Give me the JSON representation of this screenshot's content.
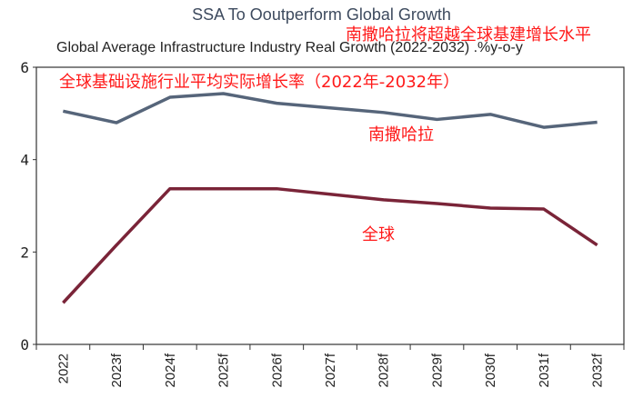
{
  "chart_data": {
    "type": "line",
    "title": "SSA To Ooutperform Global Growth",
    "subtitle": "Global Average Infrastructure Industry Real Growth (2022-2032) .%y-o-y",
    "categories": [
      "2022",
      "2023f",
      "2024f",
      "2025f",
      "2026f",
      "2027f",
      "2028f",
      "2029f",
      "2030f",
      "2031f",
      "2032f"
    ],
    "ylim": [
      0,
      6
    ],
    "yticks": [
      "0",
      "2",
      "4",
      "6"
    ],
    "series": [
      {
        "name": "SSA",
        "color": "#56657a",
        "values": [
          5.05,
          4.8,
          5.35,
          5.43,
          5.22,
          5.12,
          5.02,
          4.87,
          4.98,
          4.7,
          4.81
        ]
      },
      {
        "name": "Global",
        "color": "#7a2438",
        "values": [
          0.9,
          2.15,
          3.37,
          3.37,
          3.37,
          3.25,
          3.13,
          3.05,
          2.95,
          2.93,
          2.15
        ]
      }
    ],
    "annotations": {
      "title_cn": "南撒哈拉将超越全球基建增长水平",
      "subtitle_cn": "全球基础设施行业平均实际增长率（2022年-2032年）",
      "ssa_cn": "南撒哈拉",
      "global_cn": "全球"
    }
  }
}
